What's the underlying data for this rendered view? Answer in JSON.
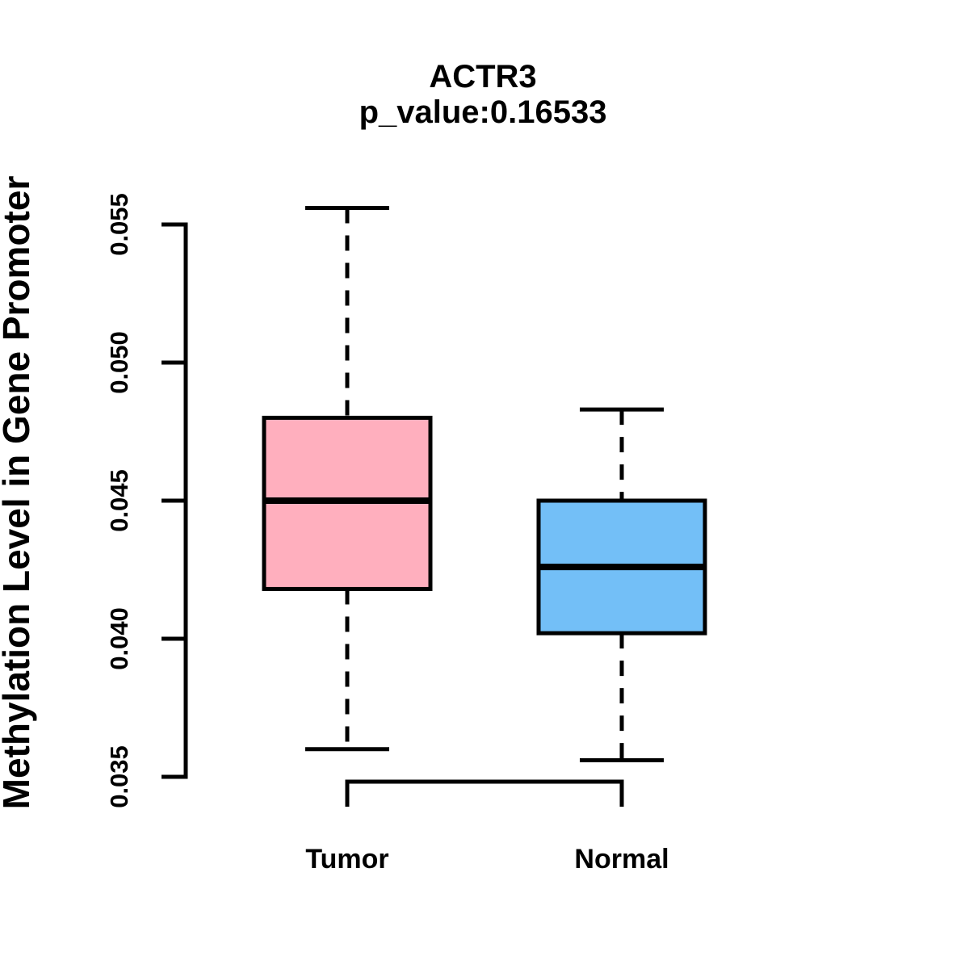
{
  "chart_data": {
    "type": "box",
    "title": "ACTR3",
    "subtitle": "p_value:0.16533",
    "ylabel": "Methylation Level in Gene Promoter",
    "xlabel": "",
    "categories": [
      "Tumor",
      "Normal"
    ],
    "y_ticks": [
      0.035,
      0.04,
      0.045,
      0.05,
      0.055
    ],
    "y_tick_labels": [
      "0.035",
      "0.040",
      "0.045",
      "0.050",
      "0.055"
    ],
    "ylim": [
      0.0338,
      0.0558
    ],
    "grid": "off",
    "legend": "none",
    "whisker_style": "dashed",
    "series": [
      {
        "name": "Tumor",
        "color": "#FFAFBE",
        "border_color": "#000000",
        "whisker_low": 0.036,
        "q1": 0.0418,
        "median": 0.045,
        "q3": 0.048,
        "whisker_high": 0.0556
      },
      {
        "name": "Normal",
        "color": "#73BFF7",
        "border_color": "#000000",
        "whisker_low": 0.0356,
        "q1": 0.0402,
        "median": 0.0426,
        "q3": 0.045,
        "whisker_high": 0.0483
      }
    ]
  }
}
